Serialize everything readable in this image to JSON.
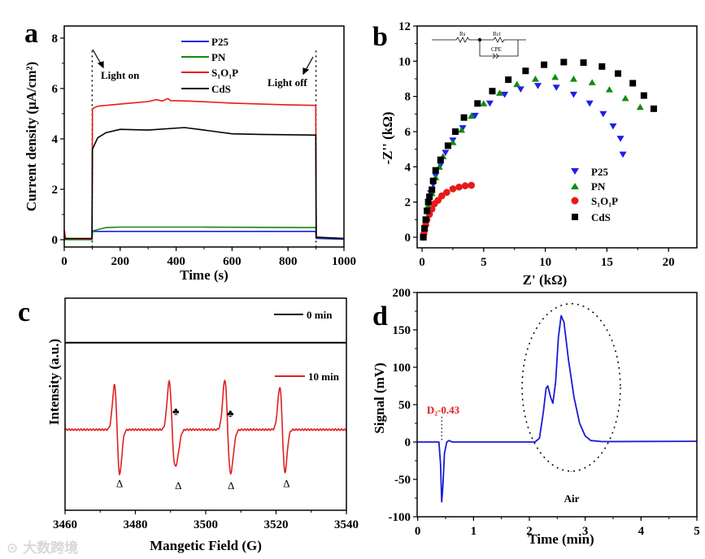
{
  "panel_labels": {
    "a": "a",
    "b": "b",
    "c": "c",
    "d": "d"
  },
  "watermark": "大数跨境",
  "colors": {
    "P25": "#1f1fe6",
    "PN": "#128a12",
    "S1O1P": "#e61a1a",
    "CdS": "#000000",
    "zero": "#000000",
    "ten": "#e02020",
    "signal": "#1a1ad6",
    "annotation": "#e02020"
  },
  "chart_data": [
    {
      "id": "a",
      "type": "line",
      "xlabel": "Time (s)",
      "ylabel": "Current density (μA/cm²)",
      "xlim": [
        0,
        1000
      ],
      "ylim": [
        -0.29,
        8.48
      ],
      "xticks": [
        "0",
        "200",
        "400",
        "600",
        "800",
        "1000"
      ],
      "yticks": [
        "0",
        "2",
        "4",
        "6",
        "8"
      ],
      "legend_position": "top-center",
      "annotations": [
        {
          "text": "Light on",
          "x": 100
        },
        {
          "text": "Light off",
          "x": 900
        }
      ],
      "series": [
        {
          "name": "P25",
          "color_key": "P25",
          "points": [
            [
              0,
              0.05
            ],
            [
              10,
              0.02
            ],
            [
              99,
              0.02
            ],
            [
              101,
              0.33
            ],
            [
              200,
              0.33
            ],
            [
              500,
              0.33
            ],
            [
              899,
              0.33
            ],
            [
              901,
              0.05
            ],
            [
              1000,
              0.02
            ]
          ]
        },
        {
          "name": "PN",
          "color_key": "PN",
          "points": [
            [
              0,
              0.0
            ],
            [
              99,
              0.0
            ],
            [
              101,
              0.35
            ],
            [
              150,
              0.48
            ],
            [
              200,
              0.5
            ],
            [
              500,
              0.5
            ],
            [
              700,
              0.49
            ],
            [
              899,
              0.48
            ],
            [
              901,
              0.08
            ],
            [
              1000,
              0.05
            ]
          ]
        },
        {
          "name": "S₁O₁P",
          "color_key": "S1O1P",
          "points": [
            [
              0,
              0.4
            ],
            [
              5,
              0.05
            ],
            [
              99,
              0.02
            ],
            [
              101,
              5.2
            ],
            [
              120,
              5.3
            ],
            [
              200,
              5.38
            ],
            [
              300,
              5.48
            ],
            [
              330,
              5.56
            ],
            [
              350,
              5.5
            ],
            [
              370,
              5.6
            ],
            [
              380,
              5.52
            ],
            [
              450,
              5.5
            ],
            [
              600,
              5.42
            ],
            [
              800,
              5.35
            ],
            [
              899,
              5.33
            ],
            [
              901,
              0.1
            ],
            [
              1000,
              0.05
            ]
          ]
        },
        {
          "name": "CdS",
          "color_key": "CdS",
          "points": [
            [
              0,
              0.05
            ],
            [
              99,
              0.05
            ],
            [
              101,
              3.6
            ],
            [
              120,
              4.05
            ],
            [
              150,
              4.25
            ],
            [
              200,
              4.38
            ],
            [
              300,
              4.35
            ],
            [
              430,
              4.45
            ],
            [
              500,
              4.35
            ],
            [
              600,
              4.2
            ],
            [
              700,
              4.18
            ],
            [
              899,
              4.15
            ],
            [
              901,
              0.1
            ],
            [
              1000,
              0.05
            ]
          ]
        }
      ]
    },
    {
      "id": "b",
      "type": "scatter",
      "xlabel": "Z' (kΩ)",
      "ylabel": "-Z'' (kΩ)",
      "xlim": [
        -0.4,
        22.3
      ],
      "ylim": [
        -0.6,
        12
      ],
      "xticks": [
        "0",
        "5",
        "10",
        "15",
        "20"
      ],
      "yticks": [
        "0",
        "2",
        "4",
        "6",
        "8",
        "10",
        "12"
      ],
      "legend_position": "center-right",
      "inset_labels": {
        "rs": "Rs",
        "rct": "Rct",
        "cpe": "CPE"
      },
      "series": [
        {
          "name": "P25",
          "marker": "triangle-down",
          "color_key": "P25",
          "points": [
            [
              0.1,
              0
            ],
            [
              0.2,
              0.5
            ],
            [
              0.3,
              1
            ],
            [
              0.4,
              1.5
            ],
            [
              0.5,
              2
            ],
            [
              0.7,
              2.5
            ],
            [
              0.9,
              3
            ],
            [
              1.1,
              3.5
            ],
            [
              1.5,
              4.1
            ],
            [
              1.9,
              4.8
            ],
            [
              2.5,
              5.5
            ],
            [
              3.3,
              6.2
            ],
            [
              4.3,
              6.9
            ],
            [
              5.5,
              7.6
            ],
            [
              6.7,
              8.1
            ],
            [
              8,
              8.4
            ],
            [
              9.4,
              8.6
            ],
            [
              10.9,
              8.5
            ],
            [
              12.3,
              8.1
            ],
            [
              13.6,
              7.6
            ],
            [
              14.7,
              7.0
            ],
            [
              15.5,
              6.3
            ],
            [
              16.1,
              5.6
            ],
            [
              16.3,
              4.7
            ]
          ]
        },
        {
          "name": "PN",
          "marker": "triangle-up",
          "color_key": "PN",
          "points": [
            [
              0.1,
              0
            ],
            [
              0.3,
              1
            ],
            [
              0.5,
              1.8
            ],
            [
              0.8,
              2.5
            ],
            [
              1.1,
              3.4
            ],
            [
              1.4,
              4
            ],
            [
              1.7,
              4.6
            ],
            [
              2.5,
              5.4
            ],
            [
              3.2,
              6.1
            ],
            [
              4,
              6.9
            ],
            [
              5,
              7.6
            ],
            [
              6.3,
              8.2
            ],
            [
              7.7,
              8.7
            ],
            [
              9.2,
              9
            ],
            [
              10.8,
              9.1
            ],
            [
              12.3,
              9
            ],
            [
              13.8,
              8.8
            ],
            [
              15.2,
              8.4
            ],
            [
              16.5,
              7.9
            ],
            [
              17.7,
              7.4
            ]
          ]
        },
        {
          "name": "S₁O₁P",
          "marker": "circle",
          "color_key": "S1O1P",
          "points": [
            [
              0.1,
              0
            ],
            [
              0.15,
              0.2
            ],
            [
              0.2,
              0.4
            ],
            [
              0.3,
              0.7
            ],
            [
              0.4,
              1
            ],
            [
              0.6,
              1.3
            ],
            [
              0.8,
              1.6
            ],
            [
              1,
              1.9
            ],
            [
              1.3,
              2.1
            ],
            [
              1.6,
              2.35
            ],
            [
              2,
              2.55
            ],
            [
              2.5,
              2.75
            ],
            [
              3,
              2.85
            ],
            [
              3.5,
              2.92
            ],
            [
              4,
              2.95
            ]
          ]
        },
        {
          "name": "CdS",
          "marker": "square",
          "color_key": "CdS",
          "points": [
            [
              0.1,
              0
            ],
            [
              0.2,
              0.5
            ],
            [
              0.3,
              1
            ],
            [
              0.4,
              1.5
            ],
            [
              0.5,
              2
            ],
            [
              0.6,
              2.3
            ],
            [
              0.8,
              2.7
            ],
            [
              0.9,
              3.2
            ],
            [
              1.1,
              3.8
            ],
            [
              1.5,
              4.4
            ],
            [
              2.1,
              5.2
            ],
            [
              2.7,
              6
            ],
            [
              3.4,
              6.8
            ],
            [
              4.5,
              7.6
            ],
            [
              5.7,
              8.3
            ],
            [
              7,
              8.95
            ],
            [
              8.4,
              9.45
            ],
            [
              9.9,
              9.8
            ],
            [
              11.5,
              9.95
            ],
            [
              13.1,
              9.92
            ],
            [
              14.6,
              9.7
            ],
            [
              15.9,
              9.3
            ],
            [
              17.1,
              8.75
            ],
            [
              18,
              8.05
            ],
            [
              18.8,
              7.3
            ]
          ]
        }
      ]
    },
    {
      "id": "c",
      "type": "line",
      "xlabel": "Mangetic Field (G)",
      "ylabel": "Intensity (a.u.)",
      "xlim": [
        3460,
        3540
      ],
      "ylim": [
        0,
        100
      ],
      "xticks": [
        "3460",
        "3480",
        "3500",
        "3520",
        "3540"
      ],
      "legend_position": "right",
      "series": [
        {
          "name": "0 min",
          "color_key": "zero",
          "baseline": 79,
          "peaks": []
        },
        {
          "name": "10 min",
          "color_key": "ten",
          "baseline": 38,
          "width": 0.75,
          "peaks": [
            {
              "center": 3474.8,
              "amp": 21
            },
            {
              "center": 3490.3,
              "amp": 21
            },
            {
              "center": 3491.4,
              "amp": 8
            },
            {
              "center": 3506.1,
              "amp": 21
            },
            {
              "center": 3507.0,
              "amp": 7
            },
            {
              "center": 3521.8,
              "amp": 20
            }
          ]
        }
      ],
      "markers": [
        {
          "symbol": "Δ",
          "x": 3475.5,
          "y": 11
        },
        {
          "symbol": "Δ",
          "x": 3492.2,
          "y": 10
        },
        {
          "symbol": "Δ",
          "x": 3507.2,
          "y": 10
        },
        {
          "symbol": "Δ",
          "x": 3523,
          "y": 11
        },
        {
          "symbol": "♣",
          "x": 3491.5,
          "y": 45
        },
        {
          "symbol": "♣",
          "x": 3507,
          "y": 44
        }
      ]
    },
    {
      "id": "d",
      "type": "line",
      "xlabel": "Time (min)",
      "ylabel": "Signal (mV)",
      "xlim": [
        -0.01,
        5
      ],
      "ylim": [
        -100,
        200
      ],
      "xticks": [
        "0",
        "1",
        "2",
        "3",
        "4",
        "5"
      ],
      "yticks": [
        "-100",
        "-50",
        "0",
        "50",
        "100",
        "150",
        "200"
      ],
      "annotations": [
        {
          "text": "D₂-0.43",
          "x": 0.43,
          "y": 38
        },
        {
          "text": "Air",
          "x": 2.75,
          "y": -55
        }
      ],
      "ellipse": {
        "cx": 2.75,
        "cy": 73,
        "rx": 0.88,
        "ry": 112
      },
      "series": [
        {
          "name": "Signal",
          "color_key": "signal",
          "points": [
            [
              0,
              0
            ],
            [
              0.38,
              0
            ],
            [
              0.41,
              -30
            ],
            [
              0.43,
              -80
            ],
            [
              0.45,
              -60
            ],
            [
              0.48,
              -15
            ],
            [
              0.52,
              0
            ],
            [
              0.56,
              2
            ],
            [
              0.62,
              0
            ],
            [
              2.1,
              0
            ],
            [
              2.18,
              5
            ],
            [
              2.25,
              40
            ],
            [
              2.3,
              72
            ],
            [
              2.33,
              75
            ],
            [
              2.38,
              60
            ],
            [
              2.42,
              52
            ],
            [
              2.47,
              80
            ],
            [
              2.52,
              140
            ],
            [
              2.57,
              169
            ],
            [
              2.62,
              160
            ],
            [
              2.7,
              110
            ],
            [
              2.8,
              60
            ],
            [
              2.9,
              25
            ],
            [
              3.0,
              8
            ],
            [
              3.1,
              2
            ],
            [
              3.3,
              0.5
            ],
            [
              5,
              1
            ]
          ]
        }
      ]
    }
  ]
}
